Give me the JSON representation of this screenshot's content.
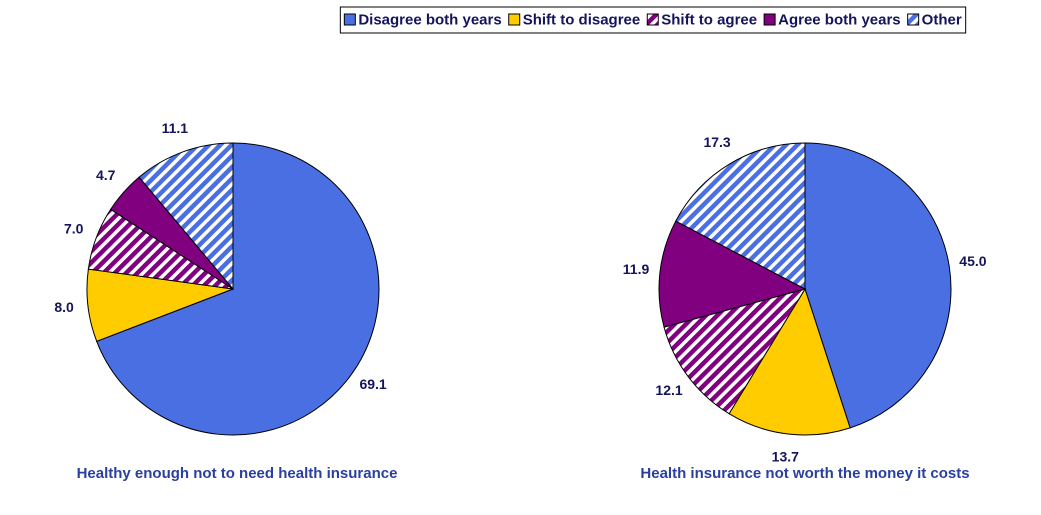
{
  "chart_data": [
    {
      "type": "pie",
      "title": "Healthy enough not to need health insurance",
      "categories": [
        "Disagree both years",
        "Shift to disagree",
        "Shift to agree",
        "Agree both years",
        "Other"
      ],
      "values": [
        69.1,
        8.0,
        7.0,
        4.7,
        11.1
      ],
      "value_labels": [
        "69.1",
        "8.0",
        "7.0",
        "4.7",
        "11.1"
      ],
      "colors": [
        "#4a6fe3",
        "#ffcc00",
        "#800080",
        "#800080",
        "#4a6fe3"
      ],
      "hatched": [
        false,
        false,
        true,
        false,
        true
      ]
    },
    {
      "type": "pie",
      "title": "Health insurance not worth the money it costs",
      "categories": [
        "Disagree both years",
        "Shift to disagree",
        "Shift to agree",
        "Agree both years",
        "Other"
      ],
      "values": [
        45.0,
        13.7,
        12.1,
        11.9,
        17.3
      ],
      "value_labels": [
        "45.0",
        "13.7",
        "12.1",
        "11.9",
        "17.3"
      ],
      "colors": [
        "#4a6fe3",
        "#ffcc00",
        "#800080",
        "#800080",
        "#4a6fe3"
      ],
      "hatched": [
        false,
        false,
        true,
        false,
        true
      ]
    }
  ]
}
